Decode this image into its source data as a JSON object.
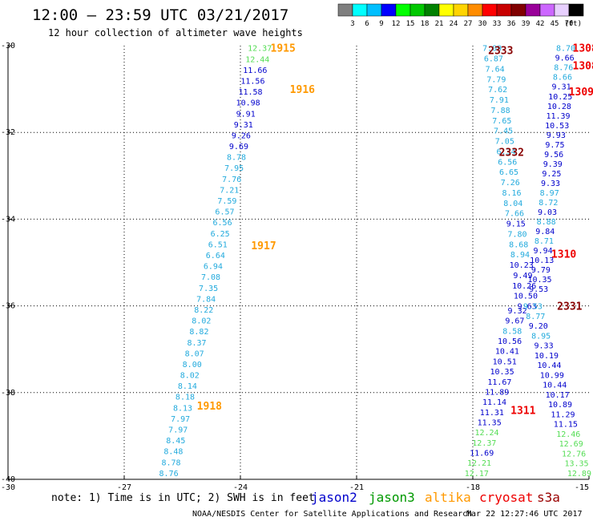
{
  "header": {
    "title": "12:00 — 23:59 UTC 03/21/2017",
    "subtitle": "12 hour collection of altimeter wave heights"
  },
  "legend": {
    "unit": "(ft)",
    "bins": [
      {
        "label": "3",
        "color": "#7f7f7f"
      },
      {
        "label": "6",
        "color": "#00ffff"
      },
      {
        "label": "9",
        "color": "#00bfff"
      },
      {
        "label": "12",
        "color": "#0000ff"
      },
      {
        "label": "15",
        "color": "#00ff00"
      },
      {
        "label": "18",
        "color": "#00c800"
      },
      {
        "label": "21",
        "color": "#008000"
      },
      {
        "label": "24",
        "color": "#ffff00"
      },
      {
        "label": "27",
        "color": "#ffd400"
      },
      {
        "label": "30",
        "color": "#ff8c00"
      },
      {
        "label": "33",
        "color": "#ff0000"
      },
      {
        "label": "36",
        "color": "#c80000"
      },
      {
        "label": "39",
        "color": "#800000"
      },
      {
        "label": "42",
        "color": "#990099"
      },
      {
        "label": "45",
        "color": "#cc66ff"
      },
      {
        "label": "70",
        "color": "#e8d0ff"
      },
      {
        "label": "",
        "color": "#000000"
      }
    ]
  },
  "footer": {
    "note": "note: 1) Time is in UTC; 2) SWH is in feet",
    "satellites": [
      {
        "name": "jason2",
        "color": "#0000cc"
      },
      {
        "name": "jason3",
        "color": "#009900"
      },
      {
        "name": "altika",
        "color": "#ff9900"
      },
      {
        "name": "cryosat",
        "color": "#ee0000"
      },
      {
        "name": "s3a",
        "color": "#990000"
      }
    ],
    "credit": "NOAA/NESDIS Center for Satellite Applications and Research",
    "timestamp": "Mar 22 12:27:46 UTC 2017"
  },
  "colors": {
    "lightblue": "#22aadd",
    "blue": "#0000cc",
    "green": "#55dd55",
    "orange": "#ff9900",
    "red": "#ee0000",
    "darkred": "#880000"
  },
  "chart_data": {
    "type": "scatter",
    "xlim": [
      -30,
      -15
    ],
    "ylim": [
      -40,
      -30
    ],
    "x_ticks": [
      "-27",
      "-24",
      "-21",
      "-18",
      "-15"
    ],
    "x_tick_values": [
      -27,
      -24,
      -21,
      -18,
      -15
    ],
    "x_edge_label": "-30",
    "y_ticks": [
      "-30",
      "-32",
      "-34",
      "-36",
      "-38",
      "-40"
    ],
    "y_tick_values": [
      -30,
      -32,
      -34,
      -36,
      -38,
      -40
    ],
    "grid": true,
    "orbit_labels": [
      {
        "text": "1915",
        "x": -22.9,
        "y": -30.05,
        "color": "orange"
      },
      {
        "text": "1916",
        "x": -22.4,
        "y": -31.0,
        "color": "orange"
      },
      {
        "text": "1917",
        "x": -23.4,
        "y": -34.6,
        "color": "orange"
      },
      {
        "text": "1918",
        "x": -24.8,
        "y": -38.3,
        "color": "orange"
      },
      {
        "text": "2333",
        "x": -17.28,
        "y": -30.1,
        "color": "darkred"
      },
      {
        "text": "2332",
        "x": -17.0,
        "y": -32.45,
        "color": "darkred"
      },
      {
        "text": "2331",
        "x": -15.5,
        "y": -36.0,
        "color": "darkred"
      },
      {
        "text": "1308",
        "x": -15.1,
        "y": -30.05,
        "color": "red"
      },
      {
        "text": "1308",
        "x": -15.1,
        "y": -30.45,
        "color": "red"
      },
      {
        "text": "1309",
        "x": -15.2,
        "y": -31.05,
        "color": "red"
      },
      {
        "text": "1310",
        "x": -15.65,
        "y": -34.8,
        "color": "red"
      },
      {
        "text": "1311",
        "x": -16.7,
        "y": -38.4,
        "color": "red"
      }
    ],
    "series": [
      {
        "name": "altika",
        "tracks": [
          {
            "x0": -23.5,
            "y0": -30.05,
            "x1": -25.85,
            "y1": -39.85,
            "values": [
              {
                "v": "12.37",
                "c": "green"
              },
              {
                "v": "12.44",
                "c": "green"
              },
              {
                "v": "11.66",
                "c": "blue"
              },
              {
                "v": "11.56",
                "c": "blue"
              },
              {
                "v": "11.58",
                "c": "blue"
              },
              {
                "v": "10.98",
                "c": "blue"
              },
              {
                "v": "9.91",
                "c": "blue"
              },
              {
                "v": "9.31",
                "c": "blue"
              },
              {
                "v": "9.26",
                "c": "blue"
              },
              {
                "v": "9.69",
                "c": "blue"
              },
              {
                "v": "8.78",
                "c": "lightblue"
              },
              {
                "v": "7.95",
                "c": "lightblue"
              },
              {
                "v": "7.76",
                "c": "lightblue"
              },
              {
                "v": "7.21",
                "c": "lightblue"
              },
              {
                "v": "7.59",
                "c": "lightblue"
              },
              {
                "v": "6.57",
                "c": "lightblue"
              },
              {
                "v": "6.56",
                "c": "lightblue"
              },
              {
                "v": "6.25",
                "c": "lightblue"
              },
              {
                "v": "6.51",
                "c": "lightblue"
              },
              {
                "v": "6.64",
                "c": "lightblue"
              },
              {
                "v": "6.94",
                "c": "lightblue"
              },
              {
                "v": "7.08",
                "c": "lightblue"
              },
              {
                "v": "7.35",
                "c": "lightblue"
              },
              {
                "v": "7.84",
                "c": "lightblue"
              },
              {
                "v": "8.22",
                "c": "lightblue"
              },
              {
                "v": "8.02",
                "c": "lightblue"
              },
              {
                "v": "8.82",
                "c": "lightblue"
              },
              {
                "v": "8.37",
                "c": "lightblue"
              },
              {
                "v": "8.07",
                "c": "lightblue"
              },
              {
                "v": "8.00",
                "c": "lightblue"
              },
              {
                "v": "8.02",
                "c": "lightblue"
              },
              {
                "v": "8.14",
                "c": "lightblue"
              },
              {
                "v": "8.18",
                "c": "lightblue"
              },
              {
                "v": "8.13",
                "c": "lightblue"
              },
              {
                "v": "7.97",
                "c": "lightblue"
              },
              {
                "v": "7.97",
                "c": "lightblue"
              },
              {
                "v": "8.45",
                "c": "lightblue"
              },
              {
                "v": "8.48",
                "c": "lightblue"
              },
              {
                "v": "8.78",
                "c": "lightblue"
              },
              {
                "v": "8.76",
                "c": "lightblue"
              }
            ]
          }
        ]
      },
      {
        "name": "s3a",
        "tracks": [
          {
            "x0": -17.5,
            "y0": -30.05,
            "x1": -16.6,
            "y1": -36.0,
            "values": [
              {
                "v": "7.09",
                "c": "lightblue"
              },
              {
                "v": "6.87",
                "c": "lightblue"
              },
              {
                "v": "7.64",
                "c": "lightblue"
              },
              {
                "v": "7.79",
                "c": "lightblue"
              },
              {
                "v": "7.62",
                "c": "lightblue"
              },
              {
                "v": "7.91",
                "c": "lightblue"
              },
              {
                "v": "7.88",
                "c": "lightblue"
              },
              {
                "v": "7.65",
                "c": "lightblue"
              },
              {
                "v": "7.45",
                "c": "lightblue"
              },
              {
                "v": "7.05",
                "c": "lightblue"
              },
              {
                "v": "6.34",
                "c": "lightblue"
              },
              {
                "v": "6.56",
                "c": "lightblue"
              },
              {
                "v": "6.65",
                "c": "lightblue"
              },
              {
                "v": "7.26",
                "c": "lightblue"
              },
              {
                "v": "8.16",
                "c": "lightblue"
              },
              {
                "v": "8.04",
                "c": "lightblue"
              },
              {
                "v": "7.66",
                "c": "lightblue"
              },
              {
                "v": "9.15",
                "c": "blue"
              },
              {
                "v": "7.80",
                "c": "lightblue"
              },
              {
                "v": "8.68",
                "c": "lightblue"
              },
              {
                "v": "8.94",
                "c": "lightblue"
              },
              {
                "v": "10.23",
                "c": "blue"
              },
              {
                "v": "9.49",
                "c": "blue"
              },
              {
                "v": "10.26",
                "c": "blue"
              },
              {
                "v": "10.50",
                "c": "blue"
              },
              {
                "v": "9.63",
                "c": "blue"
              }
            ]
          },
          {
            "x0": -16.85,
            "y0": -36.1,
            "x1": -17.9,
            "y1": -39.85,
            "values": [
              {
                "v": "9.32",
                "c": "blue"
              },
              {
                "v": "9.67",
                "c": "blue"
              },
              {
                "v": "8.58",
                "c": "lightblue"
              },
              {
                "v": "10.56",
                "c": "blue"
              },
              {
                "v": "10.41",
                "c": "blue"
              },
              {
                "v": "10.51",
                "c": "blue"
              },
              {
                "v": "10.35",
                "c": "blue"
              },
              {
                "v": "11.67",
                "c": "blue"
              },
              {
                "v": "11.89",
                "c": "blue"
              },
              {
                "v": "11.14",
                "c": "blue"
              },
              {
                "v": "11.31",
                "c": "blue"
              },
              {
                "v": "11.35",
                "c": "blue"
              },
              {
                "v": "12.24",
                "c": "green"
              },
              {
                "v": "12.37",
                "c": "green"
              },
              {
                "v": "11.69",
                "c": "blue"
              },
              {
                "v": "12.21",
                "c": "green"
              },
              {
                "v": "12.17",
                "c": "green"
              }
            ]
          }
        ]
      },
      {
        "name": "cryosat",
        "tracks": [
          {
            "x0": -15.6,
            "y0": -30.05,
            "x1": -16.3,
            "y1": -35.6,
            "values": [
              {
                "v": "8.70",
                "c": "lightblue"
              },
              {
                "v": "9.66",
                "c": "blue"
              },
              {
                "v": "8.76",
                "c": "lightblue"
              },
              {
                "v": "8.66",
                "c": "lightblue"
              },
              {
                "v": "9.31",
                "c": "blue"
              },
              {
                "v": "10.25",
                "c": "blue"
              },
              {
                "v": "10.28",
                "c": "blue"
              },
              {
                "v": "11.39",
                "c": "blue"
              },
              {
                "v": "10.53",
                "c": "blue"
              },
              {
                "v": "9.93",
                "c": "blue"
              },
              {
                "v": "9.75",
                "c": "blue"
              },
              {
                "v": "9.56",
                "c": "blue"
              },
              {
                "v": "9.39",
                "c": "blue"
              },
              {
                "v": "9.25",
                "c": "blue"
              },
              {
                "v": "9.33",
                "c": "blue"
              },
              {
                "v": "8.97",
                "c": "lightblue"
              },
              {
                "v": "8.72",
                "c": "lightblue"
              },
              {
                "v": "9.03",
                "c": "blue"
              },
              {
                "v": "8.88",
                "c": "lightblue"
              },
              {
                "v": "9.84",
                "c": "blue"
              },
              {
                "v": "8.71",
                "c": "lightblue"
              },
              {
                "v": "9.94",
                "c": "blue"
              },
              {
                "v": "10.13",
                "c": "blue"
              },
              {
                "v": "9.79",
                "c": "blue"
              },
              {
                "v": "10.35",
                "c": "blue"
              },
              {
                "v": "9.53",
                "c": "blue"
              }
            ]
          },
          {
            "x0": -16.45,
            "y0": -36.0,
            "x1": -15.25,
            "y1": -39.85,
            "values": [
              {
                "v": "9.53",
                "c": "lightblue"
              },
              {
                "v": "8.77",
                "c": "lightblue"
              },
              {
                "v": "9.20",
                "c": "blue"
              },
              {
                "v": "8.95",
                "c": "lightblue"
              },
              {
                "v": "9.33",
                "c": "blue"
              },
              {
                "v": "10.19",
                "c": "blue"
              },
              {
                "v": "10.44",
                "c": "blue"
              },
              {
                "v": "10.99",
                "c": "blue"
              },
              {
                "v": "10.44",
                "c": "blue"
              },
              {
                "v": "10.17",
                "c": "blue"
              },
              {
                "v": "10.89",
                "c": "blue"
              },
              {
                "v": "11.29",
                "c": "blue"
              },
              {
                "v": "11.15",
                "c": "blue"
              },
              {
                "v": "12.46",
                "c": "green"
              },
              {
                "v": "12.69",
                "c": "green"
              },
              {
                "v": "12.76",
                "c": "green"
              },
              {
                "v": "13.35",
                "c": "green"
              },
              {
                "v": "12.89",
                "c": "green"
              }
            ]
          }
        ]
      }
    ]
  }
}
